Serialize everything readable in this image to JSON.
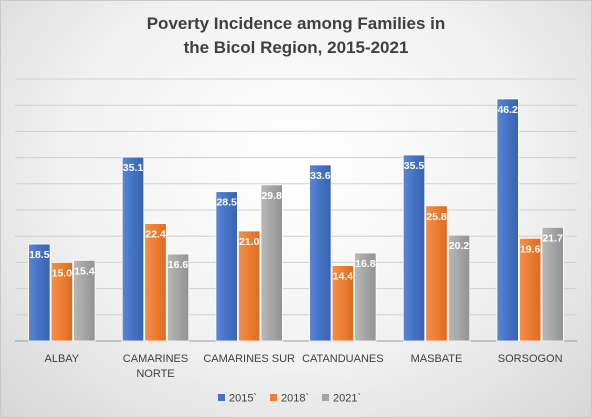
{
  "chart_data": {
    "type": "bar",
    "title_lines": [
      "Poverty Incidence among Families in",
      "the Bicol Region, 2015-2021"
    ],
    "categories": [
      [
        "ALBAY"
      ],
      [
        "CAMARINES",
        "NORTE"
      ],
      [
        "CAMARINES SUR"
      ],
      [
        "CATANDUANES"
      ],
      [
        "MASBATE"
      ],
      [
        "SORSOGON"
      ]
    ],
    "series": [
      {
        "name": "2015`",
        "color": "#4472c4",
        "values": [
          18.5,
          35.1,
          28.5,
          33.6,
          35.5,
          46.2
        ]
      },
      {
        "name": "2018`",
        "color": "#ed7d31",
        "values": [
          15.0,
          22.4,
          21.0,
          14.4,
          25.8,
          19.6
        ]
      },
      {
        "name": "2021`",
        "color": "#a5a5a5",
        "values": [
          15.4,
          16.6,
          29.8,
          16.8,
          20.2,
          21.7
        ]
      }
    ],
    "ylim": [
      0,
      50
    ],
    "y_gridlines": [
      0,
      5,
      10,
      15,
      20,
      25,
      30,
      35,
      40,
      45,
      50
    ],
    "y_tick_labels_shown": false,
    "grid": true,
    "legend_position": "bottom",
    "data_labels": true,
    "label_decimals": 1
  }
}
